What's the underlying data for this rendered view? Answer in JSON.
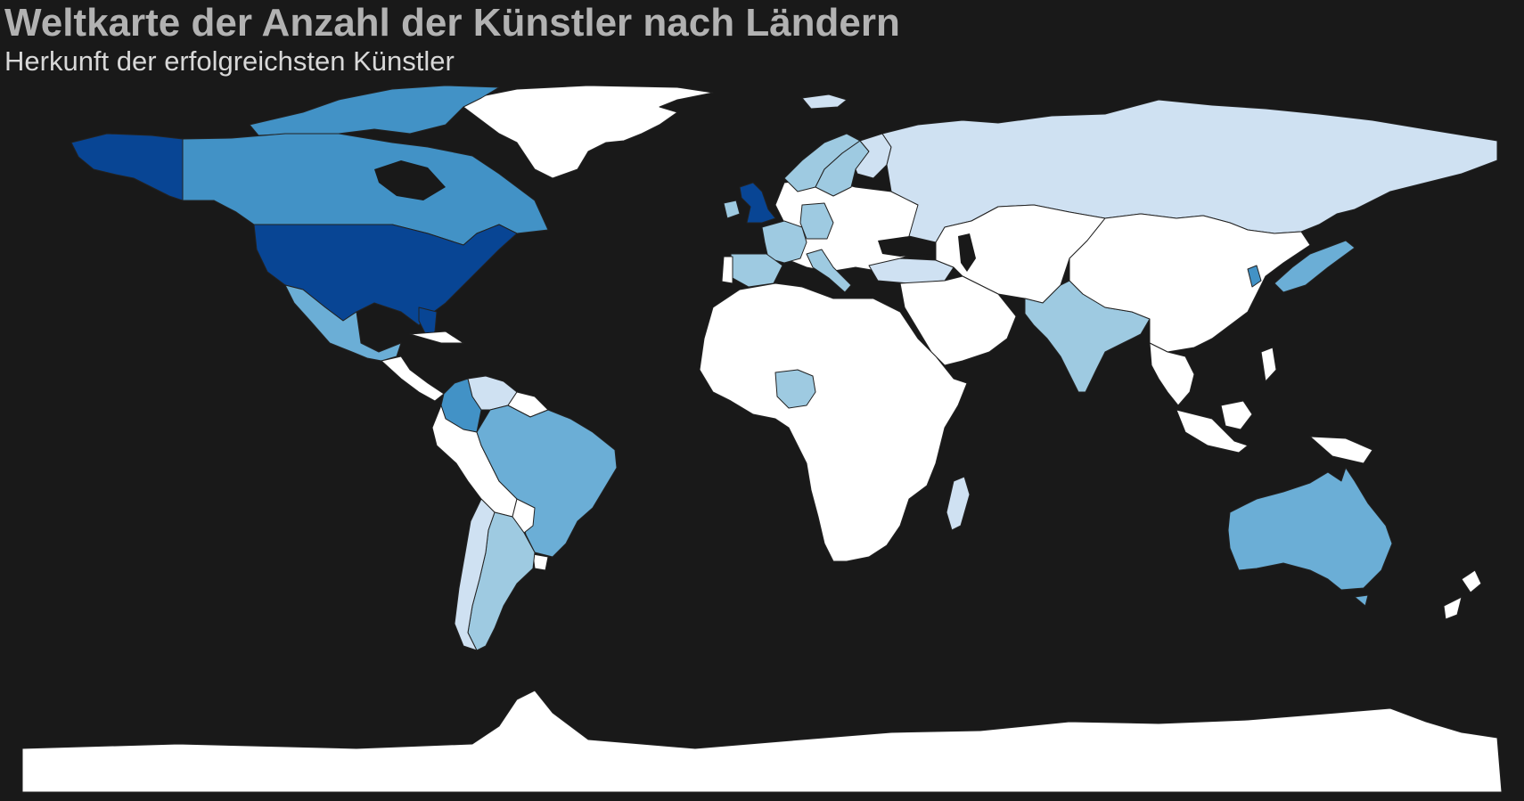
{
  "header": {
    "title": "Weltkarte der Anzahl der Künstler nach Ländern",
    "subtitle": "Herkunft der erfolgreichsten Künstler"
  },
  "map": {
    "projection": "equirectangular",
    "background_color": "#191919",
    "border_color": "#222222",
    "no_data_color": "#ffffff",
    "color_scale": [
      "#cfe1f2",
      "#9ecae1",
      "#6baed6",
      "#4292c6",
      "#2171b5",
      "#084594"
    ],
    "shaded_regions": [
      {
        "name": "USA",
        "level": 5
      },
      {
        "name": "Alaska",
        "level": 5
      },
      {
        "name": "United Kingdom",
        "level": 5
      },
      {
        "name": "Canada",
        "level": 3
      },
      {
        "name": "South Korea",
        "level": 3
      },
      {
        "name": "Colombia",
        "level": 3
      },
      {
        "name": "Mexico",
        "level": 2
      },
      {
        "name": "Brazil",
        "level": 2
      },
      {
        "name": "Australia",
        "level": 2
      },
      {
        "name": "Argentina",
        "level": 1
      },
      {
        "name": "India",
        "level": 1
      },
      {
        "name": "Nigeria",
        "level": 1
      },
      {
        "name": "Japan",
        "level": 1
      },
      {
        "name": "France",
        "level": 1
      },
      {
        "name": "Spain",
        "level": 1
      },
      {
        "name": "Germany",
        "level": 1
      },
      {
        "name": "Italy",
        "level": 1
      },
      {
        "name": "Ireland",
        "level": 1
      },
      {
        "name": "Sweden",
        "level": 1
      },
      {
        "name": "Norway",
        "level": 1
      },
      {
        "name": "Russia",
        "level": 0
      },
      {
        "name": "Venezuela",
        "level": 0
      },
      {
        "name": "Chile",
        "level": 0
      },
      {
        "name": "Turkey",
        "level": 0
      },
      {
        "name": "Finland",
        "level": 0
      },
      {
        "name": "Madagascar",
        "level": 0
      }
    ]
  }
}
